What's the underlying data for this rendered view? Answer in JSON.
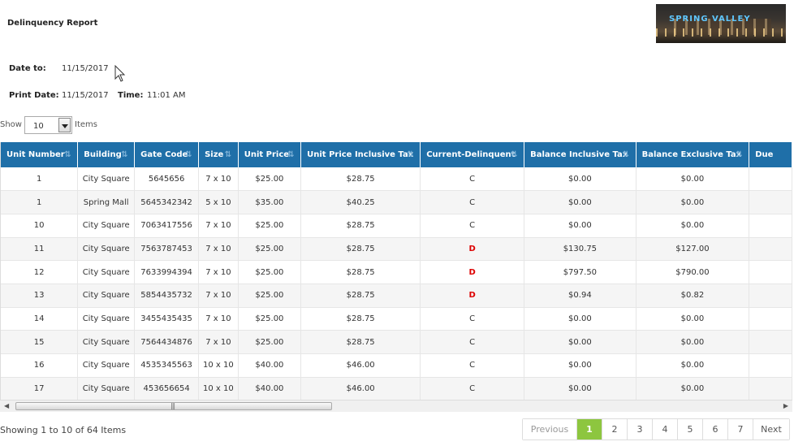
{
  "report": {
    "title": "Delinquency Report",
    "date_to_label": "Date to:",
    "date_to": "11/15/2017",
    "print_date_label": "Print Date:",
    "print_date": "11/15/2017",
    "time_label": "Time:",
    "time": "11:01 AM",
    "logo_text": "SPRING VALLEY"
  },
  "page_size": {
    "show_label": "Show",
    "value": "10",
    "items_label": "Items"
  },
  "table": {
    "columns": [
      "Unit Number",
      "Building",
      "Gate Code",
      "Size",
      "Unit Price",
      "Unit Price Inclusive Tax",
      "Current-Delinquent",
      "Balance Inclusive Tax",
      "Balance Exclusive Tax",
      "Due"
    ],
    "rows": [
      [
        "1",
        "City Square",
        "5645656",
        "7 x 10",
        "$25.00",
        "$28.75",
        "C",
        "$0.00",
        "$0.00"
      ],
      [
        "1",
        "Spring Mall",
        "5645342342",
        "5 x 10",
        "$35.00",
        "$40.25",
        "C",
        "$0.00",
        "$0.00"
      ],
      [
        "10",
        "City Square",
        "7063417556",
        "7 x 10",
        "$25.00",
        "$28.75",
        "C",
        "$0.00",
        "$0.00"
      ],
      [
        "11",
        "City Square",
        "7563787453",
        "7 x 10",
        "$25.00",
        "$28.75",
        "D",
        "$130.75",
        "$127.00"
      ],
      [
        "12",
        "City Square",
        "7633994394",
        "7 x 10",
        "$25.00",
        "$28.75",
        "D",
        "$797.50",
        "$790.00"
      ],
      [
        "13",
        "City Square",
        "5854435732",
        "7 x 10",
        "$25.00",
        "$28.75",
        "D",
        "$0.94",
        "$0.82"
      ],
      [
        "14",
        "City Square",
        "3455435435",
        "7 x 10",
        "$25.00",
        "$28.75",
        "C",
        "$0.00",
        "$0.00"
      ],
      [
        "15",
        "City Square",
        "7564434876",
        "7 x 10",
        "$25.00",
        "$28.75",
        "C",
        "$0.00",
        "$0.00"
      ],
      [
        "16",
        "City Square",
        "4535345563",
        "10 x 10",
        "$40.00",
        "$46.00",
        "C",
        "$0.00",
        "$0.00"
      ],
      [
        "17",
        "City Square",
        "453656654",
        "10 x 10",
        "$40.00",
        "$46.00",
        "C",
        "$0.00",
        "$0.00"
      ]
    ]
  },
  "summary": "Showing 1 to 10 of 64 Items",
  "pagination": {
    "previous": "Previous",
    "pages": [
      "1",
      "2",
      "3",
      "4",
      "5",
      "6",
      "7"
    ],
    "active": "1",
    "next": "Next"
  },
  "colors": {
    "header_bg": "#1f6fa8",
    "delinquent_text": "#dd0000",
    "active_page": "#8dc63f"
  },
  "icons": {
    "sort": "sort-arrows-icon",
    "dropdown": "chevron-down-icon",
    "scroll_left": "arrow-left-icon",
    "scroll_right": "arrow-right-icon"
  }
}
